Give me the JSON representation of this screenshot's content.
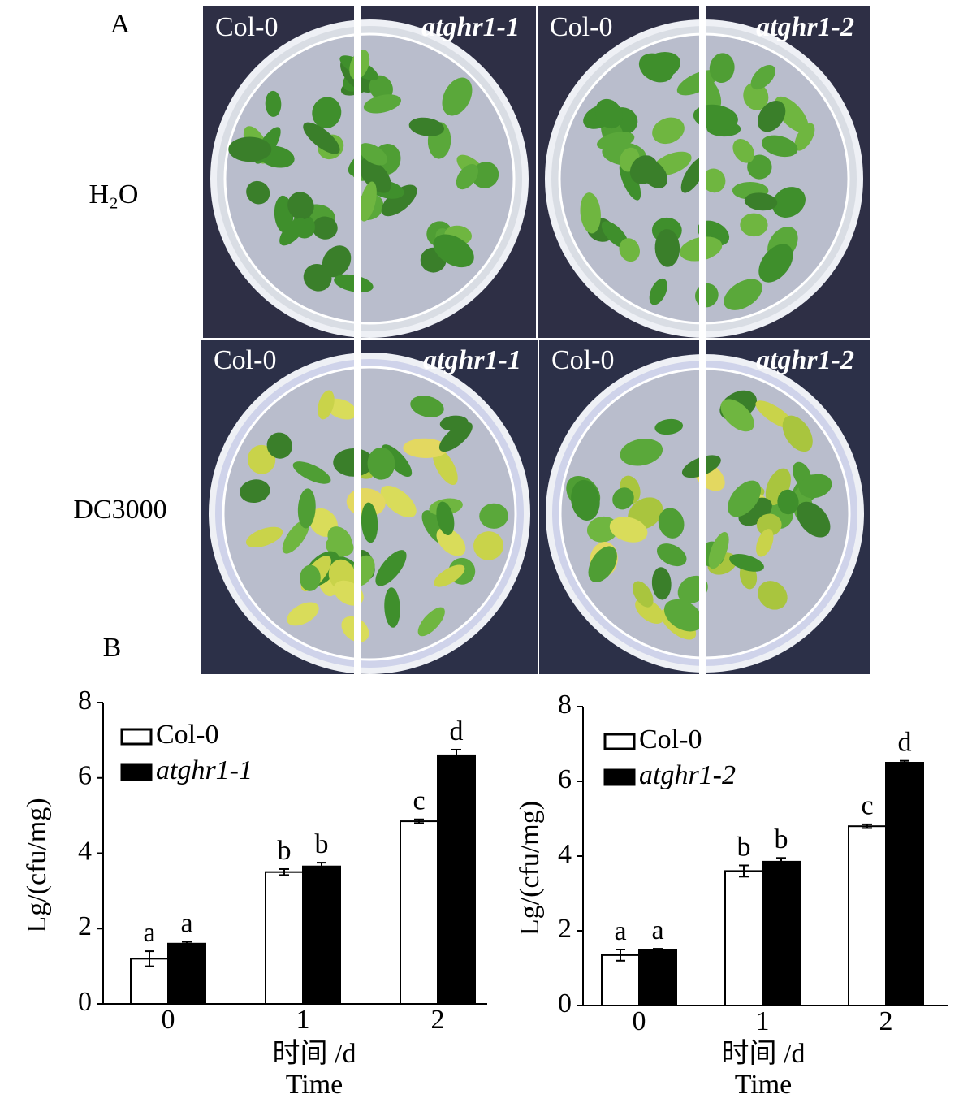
{
  "panel_a": {
    "label": "A",
    "row_labels": [
      "H₂O",
      "DC3000"
    ],
    "plates": [
      {
        "left": "Col-0",
        "right": "atghr1-1"
      },
      {
        "left": "Col-0",
        "right": "atghr1-2"
      },
      {
        "left": "Col-0",
        "right": "atghr1-1"
      },
      {
        "left": "Col-0",
        "right": "atghr1-2"
      }
    ]
  },
  "panel_b": {
    "label": "B"
  },
  "chart_data": [
    {
      "type": "bar",
      "ylabel": "Lg/(cfu/mg)",
      "xlabel": "时间 /d",
      "xlabel_en": "Time",
      "categories": [
        "0",
        "1",
        "2"
      ],
      "ylim": [
        0,
        8
      ],
      "yticks": [
        0,
        2,
        4,
        6,
        8
      ],
      "series": [
        {
          "name": "Col-0",
          "color": "#ffffff",
          "edgecolor": "#000000",
          "values": [
            1.2,
            3.5,
            4.85
          ],
          "errors": [
            0.2,
            0.08,
            0.05
          ],
          "letters": [
            "a",
            "b",
            "c"
          ]
        },
        {
          "name": "atghr1-1",
          "color": "#000000",
          "edgecolor": "#000000",
          "font_style": "italic",
          "values": [
            1.6,
            3.65,
            6.6
          ],
          "errors": [
            0.05,
            0.1,
            0.15
          ],
          "letters": [
            "a",
            "b",
            "d"
          ]
        }
      ]
    },
    {
      "type": "bar",
      "ylabel": "Lg/(cfu/mg)",
      "xlabel": "时间 /d",
      "xlabel_en": "Time",
      "categories": [
        "0",
        "1",
        "2"
      ],
      "ylim": [
        0,
        8
      ],
      "yticks": [
        0,
        2,
        4,
        6,
        8
      ],
      "series": [
        {
          "name": "Col-0",
          "color": "#ffffff",
          "edgecolor": "#000000",
          "values": [
            1.35,
            3.6,
            4.8
          ],
          "errors": [
            0.15,
            0.15,
            0.05
          ],
          "letters": [
            "a",
            "b",
            "c"
          ]
        },
        {
          "name": "atghr1-2",
          "color": "#000000",
          "edgecolor": "#000000",
          "font_style": "italic",
          "values": [
            1.5,
            3.85,
            6.5
          ],
          "errors": [
            0.02,
            0.1,
            0.05
          ],
          "letters": [
            "a",
            "b",
            "d"
          ]
        }
      ]
    }
  ]
}
